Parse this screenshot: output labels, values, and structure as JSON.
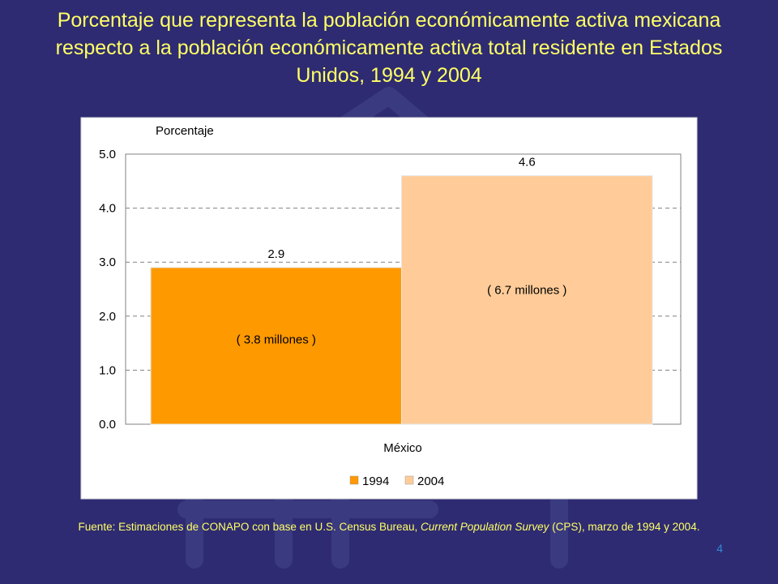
{
  "slide": {
    "title": "Porcentaje que representa la población económicamente activa mexicana respecto a la población económicamente activa total residente en Estados Unidos, 1994 y 2004",
    "source_prefix": "Fuente: Estimaciones de CONAPO con base en U.S. Census Bureau, ",
    "source_italic": "Current Population Survey",
    "source_suffix": " (CPS), marzo de 1994 y 2004.",
    "page_number": "4"
  },
  "chart_data": {
    "type": "bar",
    "ylabel": "Porcentaje",
    "xlabel": "México",
    "categories": [
      "México"
    ],
    "ylim": [
      0,
      5
    ],
    "yticks": [
      "0.0",
      "1.0",
      "2.0",
      "3.0",
      "4.0",
      "5.0"
    ],
    "grid": true,
    "legend_position": "bottom",
    "series": [
      {
        "name": "1994",
        "values": [
          2.9
        ],
        "value_label": "2.9",
        "inner_label": "( 3.8 millones )",
        "color": "#ff9900"
      },
      {
        "name": "2004",
        "values": [
          4.6
        ],
        "value_label": "4.6",
        "inner_label": "( 6.7 millones )",
        "color": "#ffcc99"
      }
    ],
    "colors": {
      "axis_text": "#000000",
      "plot_background": "#ffffff",
      "grid": "#808080"
    }
  }
}
